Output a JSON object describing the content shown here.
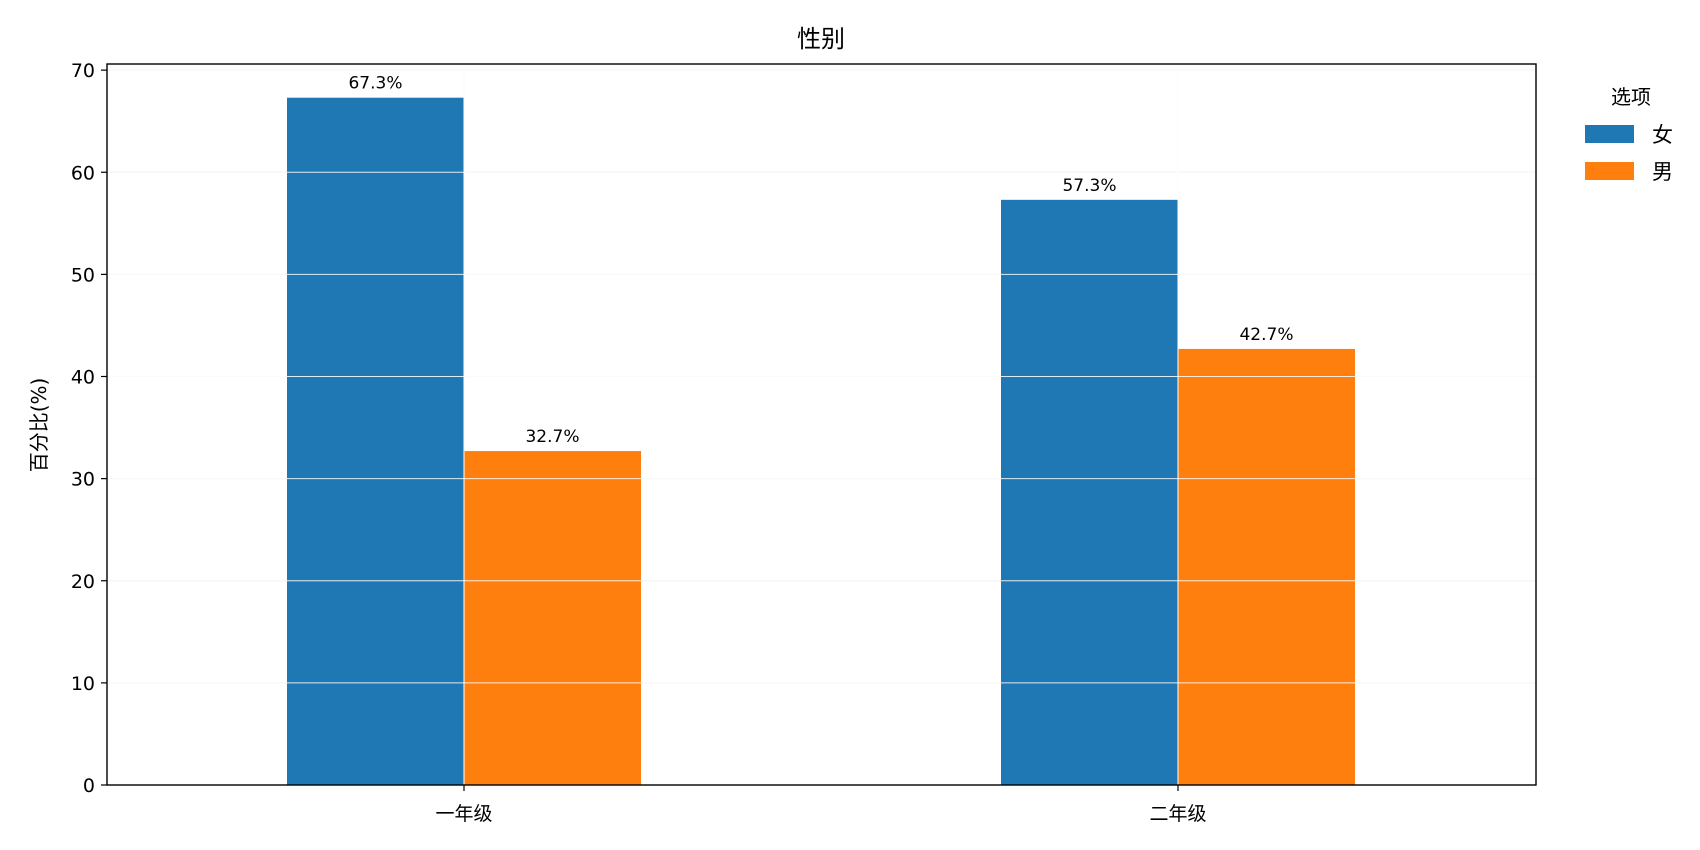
{
  "chart_data": {
    "type": "bar",
    "title": "性别",
    "xlabel": "",
    "ylabel": "百分比(%)",
    "ylim": [
      0,
      70.6
    ],
    "yticks": [
      0,
      10,
      20,
      30,
      40,
      50,
      60,
      70
    ],
    "categories": [
      "一年级",
      "二年级"
    ],
    "series": [
      {
        "name": "女",
        "values": [
          67.3,
          57.3
        ],
        "labels": [
          "67.3%",
          "57.3%"
        ],
        "color": "#1f77b4"
      },
      {
        "name": "男",
        "values": [
          32.7,
          42.7
        ],
        "labels": [
          "32.7%",
          "42.7%"
        ],
        "color": "#ff7f0e"
      }
    ],
    "legend_title": "选项",
    "legend_position": "outside-top-right",
    "grid": true
  }
}
